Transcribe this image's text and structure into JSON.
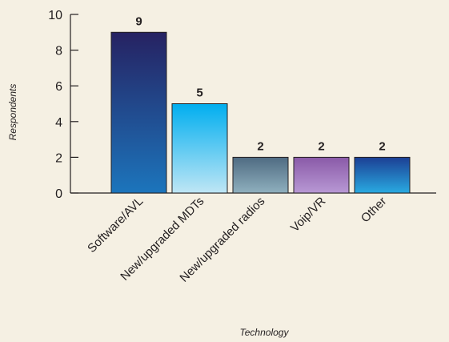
{
  "chart_data": {
    "type": "bar",
    "categories": [
      "Software/AVL",
      "New/upgraded MDTs",
      "New/upgraded radios",
      "Voip/VR",
      "Other"
    ],
    "values": [
      9,
      5,
      2,
      2,
      2
    ],
    "data_labels": [
      "9",
      "5",
      "2",
      "2",
      "2"
    ],
    "title": "",
    "xlabel": "Technology",
    "ylabel": "Respondents",
    "ylim": [
      0,
      10
    ],
    "yticks": [
      "0",
      "2",
      "4",
      "6",
      "8",
      "10"
    ],
    "grid": false,
    "legend": "none",
    "bar_gradients": [
      [
        "#262262",
        "#1c75bc"
      ],
      [
        "#00aeef",
        "#bfe6f5"
      ],
      [
        "#4f6b82",
        "#8fb0be"
      ],
      [
        "#8a5aa8",
        "#b898d4"
      ],
      [
        "#1c3f94",
        "#29aae1"
      ]
    ]
  }
}
